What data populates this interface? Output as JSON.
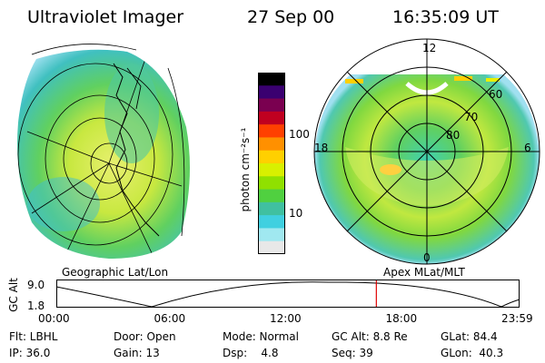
{
  "header": {
    "instrument": "Ultraviolet Imager",
    "date": "27 Sep 00",
    "time": "16:35:09 UT"
  },
  "left_panel": {
    "caption": "Geographic Lat/Lon"
  },
  "right_panel": {
    "caption": "Apex MLat/MLT",
    "mlt_labels": [
      "12",
      "18",
      "6",
      "0"
    ],
    "mlat_labels": [
      "60",
      "70",
      "80"
    ]
  },
  "colorbar": {
    "unit_label": "photon cm⁻²s⁻¹",
    "ticks": [
      "100",
      "10"
    ],
    "colors": [
      "#000000",
      "#3a0070",
      "#7a0050",
      "#c00020",
      "#ff4000",
      "#ff9000",
      "#ffd000",
      "#d8f000",
      "#90e000",
      "#50d040",
      "#40c0a0",
      "#40d0e0",
      "#a0e8f0",
      "#e8e8e8"
    ]
  },
  "timeline": {
    "yaxis_label": "GC Alt",
    "y_ticks": [
      "9.0",
      "1.8"
    ],
    "x_ticks": [
      "00:00",
      "06:00",
      "12:00",
      "18:00",
      "23:59"
    ],
    "current_marker_hours": 16.58
  },
  "info_rows": [
    [
      "Flt: LBHL",
      "Door: Open",
      "Mode: Normal",
      "GC Alt: 8.8 Re",
      "GLat: 84.4"
    ],
    [
      "IP: 36.0",
      "Gain: 13",
      "Dsp:    4.8",
      "Seq: 39",
      "GLon:  40.3"
    ]
  ]
}
